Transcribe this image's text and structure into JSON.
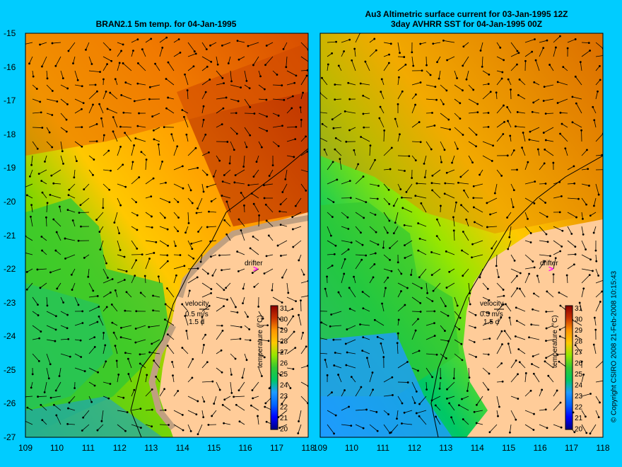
{
  "titles": {
    "left": "BRAN2.1 5m temp. for 04-Jan-1995",
    "right_line1": "Au3 Altimetric surface current for 03-Jan-1995 12Z",
    "right_line2": "3day AVHRR SST for 04-Jan-1995 00Z"
  },
  "axes": {
    "y_ticks": [
      "-15",
      "-16",
      "-17",
      "-18",
      "-19",
      "-20",
      "-21",
      "-22",
      "-23",
      "-24",
      "-25",
      "-26",
      "-27"
    ],
    "x_ticks": [
      "109",
      "110",
      "111",
      "112",
      "113",
      "114",
      "115",
      "116",
      "117",
      "118"
    ],
    "lat_range": [
      -27,
      -15
    ],
    "lon_range": [
      109,
      118
    ]
  },
  "legend": {
    "velocity_label": "velocity",
    "velocity_scale": "0.5 m/s",
    "duration": "1.5 d",
    "drifter_label": "drifter",
    "drifter_symbol": ">",
    "colorbar_title": "temperature (°C)",
    "colorbar_ticks": [
      "31",
      "30",
      "29",
      "28",
      "27",
      "26",
      "25",
      "24",
      "23",
      "22",
      "21",
      "20"
    ]
  },
  "copyright": "© Copyright CSIRO 2008   21-Feb-2008 10:15:43",
  "colors": {
    "background": "#00ccff",
    "land": "#ffcc99",
    "missing": "#c0a080",
    "drifter": "#ff00ff",
    "scale": [
      "#000080",
      "#0000c8",
      "#0050ff",
      "#1e9bff",
      "#00c8e6",
      "#00c864",
      "#32c832",
      "#96e600",
      "#e6e600",
      "#ffc800",
      "#ff9600",
      "#e66400",
      "#c83200",
      "#a00000"
    ]
  }
}
